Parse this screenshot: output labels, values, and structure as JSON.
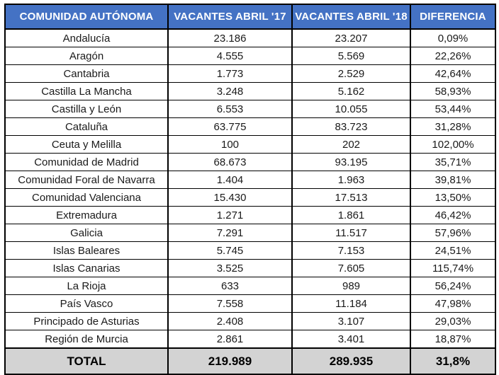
{
  "colors": {
    "header_bg": "#4472C4",
    "header_text": "#FFFFFF",
    "total_row_bg": "#D3D3D3",
    "border": "#000000",
    "body_text": "#1A1A1A"
  },
  "chart_data": {
    "type": "table",
    "title": "",
    "columns": [
      "COMUNIDAD AUTÓNOMA",
      "VACANTES ABRIL '17",
      "VACANTES ABRIL '18",
      "DIFERENCIA"
    ],
    "rows": [
      [
        "Andalucía",
        "23.186",
        "23.207",
        "0,09%"
      ],
      [
        "Aragón",
        "4.555",
        "5.569",
        "22,26%"
      ],
      [
        "Cantabria",
        "1.773",
        "2.529",
        "42,64%"
      ],
      [
        "Castilla La Mancha",
        "3.248",
        "5.162",
        "58,93%"
      ],
      [
        "Castilla y León",
        "6.553",
        "10.055",
        "53,44%"
      ],
      [
        "Cataluña",
        "63.775",
        "83.723",
        "31,28%"
      ],
      [
        "Ceuta y Melilla",
        "100",
        "202",
        "102,00%"
      ],
      [
        "Comunidad de Madrid",
        "68.673",
        "93.195",
        "35,71%"
      ],
      [
        "Comunidad Foral de Navarra",
        "1.404",
        "1.963",
        "39,81%"
      ],
      [
        "Comunidad Valenciana",
        "15.430",
        "17.513",
        "13,50%"
      ],
      [
        "Extremadura",
        "1.271",
        "1.861",
        "46,42%"
      ],
      [
        "Galicia",
        "7.291",
        "11.517",
        "57,96%"
      ],
      [
        "Islas Baleares",
        "5.745",
        "7.153",
        "24,51%"
      ],
      [
        "Islas Canarias",
        "3.525",
        "7.605",
        "115,74%"
      ],
      [
        "La Rioja",
        "633",
        "989",
        "56,24%"
      ],
      [
        "País Vasco",
        "7.558",
        "11.184",
        "47,98%"
      ],
      [
        "Principado de Asturias",
        "2.408",
        "3.107",
        "29,03%"
      ],
      [
        "Región de Murcia",
        "2.861",
        "3.401",
        "18,87%"
      ]
    ],
    "total_row": [
      "TOTAL",
      "219.989",
      "289.935",
      "31,8%"
    ],
    "rows_numeric": {
      "vacantes_abril_17": [
        23186,
        4555,
        1773,
        3248,
        6553,
        63775,
        100,
        68673,
        1404,
        15430,
        1271,
        7291,
        5745,
        3525,
        633,
        7558,
        2408,
        2861
      ],
      "vacantes_abril_18": [
        23207,
        5569,
        2529,
        5162,
        10055,
        83723,
        202,
        93195,
        1963,
        17513,
        1861,
        11517,
        7153,
        7605,
        989,
        11184,
        3107,
        3401
      ],
      "diferencia_pct": [
        0.09,
        22.26,
        42.64,
        58.93,
        53.44,
        31.28,
        102.0,
        35.71,
        39.81,
        13.5,
        46.42,
        57.96,
        24.51,
        115.74,
        56.24,
        47.98,
        29.03,
        18.87
      ],
      "total_17": 219989,
      "total_18": 289935,
      "total_diferencia_pct": 31.8
    }
  }
}
